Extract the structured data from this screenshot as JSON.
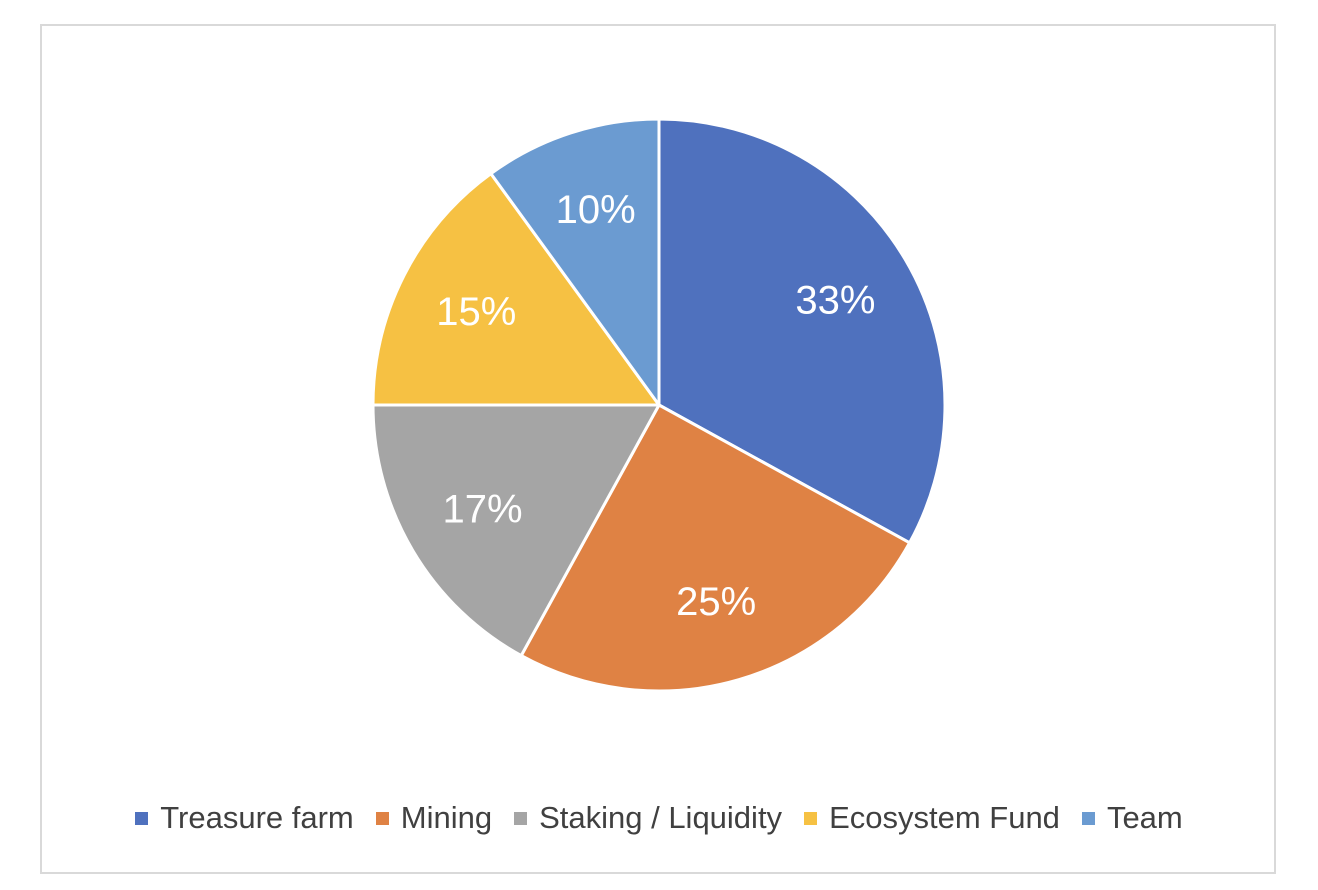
{
  "chart_data": {
    "type": "pie",
    "title": "",
    "categories": [
      "Treasure farm",
      "Mining",
      "Staking / Liquidity",
      "Ecosystem Fund",
      "Team"
    ],
    "values": [
      33,
      25,
      17,
      15,
      10
    ],
    "labels": [
      "33%",
      "25%",
      "17%",
      "15%",
      "10%"
    ],
    "colors": [
      "#4f71be",
      "#df8244",
      "#a5a5a5",
      "#f6c143",
      "#6b9bd1"
    ],
    "start_angle": "12 o'clock",
    "direction": "clockwise",
    "legend_position": "bottom",
    "grid": false
  },
  "legend": {
    "items": [
      {
        "label": "Treasure farm",
        "color": "#4f71be"
      },
      {
        "label": "Mining",
        "color": "#df8244"
      },
      {
        "label": "Staking / Liquidity",
        "color": "#a5a5a5"
      },
      {
        "label": "Ecosystem Fund",
        "color": "#f6c143"
      },
      {
        "label": "Team",
        "color": "#6b9bd1"
      }
    ]
  }
}
